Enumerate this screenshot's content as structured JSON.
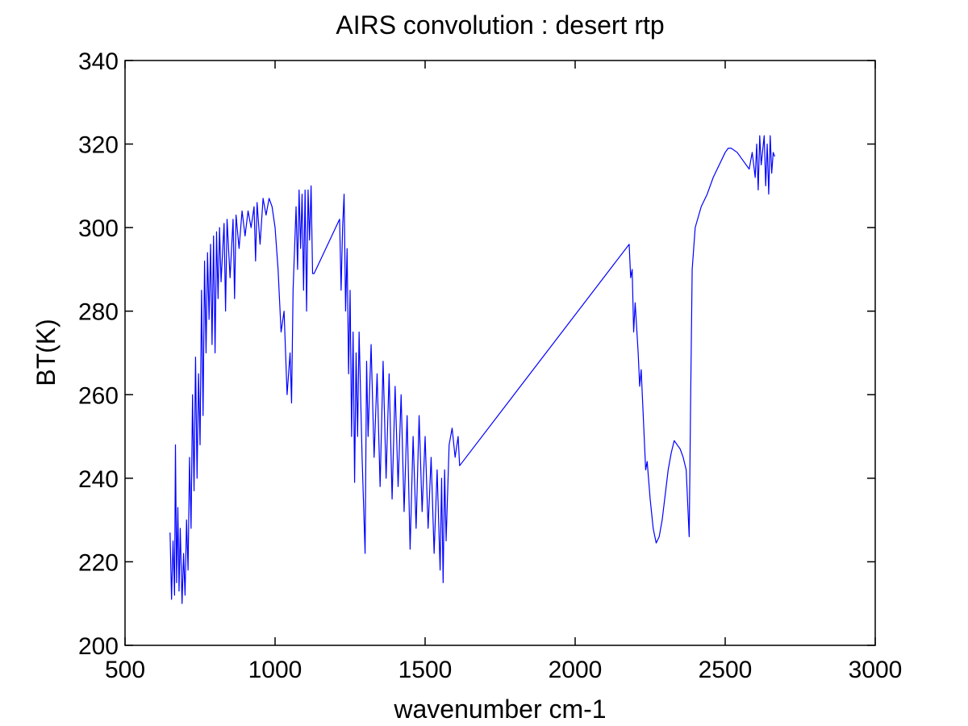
{
  "chart_data": {
    "type": "line",
    "title": "AIRS convolution : desert rtp",
    "xlabel": "wavenumber cm-1",
    "ylabel": "BT(K)",
    "xlim": [
      500,
      3000
    ],
    "xticks": [
      500,
      1000,
      1500,
      2000,
      2500,
      3000
    ],
    "ylim": [
      200,
      340
    ],
    "yticks": [
      200,
      220,
      240,
      260,
      280,
      300,
      320,
      340
    ],
    "grid": false,
    "x": [
      650,
      655,
      660,
      665,
      668,
      672,
      676,
      680,
      684,
      690,
      695,
      700,
      705,
      710,
      715,
      720,
      725,
      730,
      735,
      740,
      745,
      750,
      755,
      760,
      765,
      770,
      775,
      780,
      785,
      790,
      795,
      800,
      805,
      810,
      815,
      820,
      830,
      835,
      840,
      850,
      860,
      865,
      870,
      880,
      890,
      900,
      910,
      920,
      930,
      935,
      940,
      950,
      960,
      970,
      980,
      990,
      1000,
      1010,
      1020,
      1030,
      1040,
      1050,
      1055,
      1060,
      1070,
      1075,
      1080,
      1085,
      1090,
      1095,
      1100,
      1105,
      1110,
      1115,
      1120,
      1125,
      1130,
      1215,
      1220,
      1225,
      1230,
      1235,
      1240,
      1245,
      1250,
      1255,
      1260,
      1265,
      1270,
      1275,
      1280,
      1290,
      1300,
      1305,
      1310,
      1320,
      1330,
      1340,
      1350,
      1360,
      1370,
      1380,
      1390,
      1400,
      1410,
      1420,
      1430,
      1440,
      1450,
      1460,
      1470,
      1480,
      1490,
      1500,
      1510,
      1520,
      1530,
      1540,
      1550,
      1555,
      1560,
      1565,
      1570,
      1580,
      1590,
      1600,
      1610,
      1615,
      2180,
      2185,
      2190,
      2195,
      2200,
      2210,
      2215,
      2220,
      2230,
      2235,
      2240,
      2250,
      2260,
      2270,
      2280,
      2290,
      2300,
      2310,
      2320,
      2330,
      2340,
      2350,
      2360,
      2370,
      2380,
      2385,
      2390,
      2400,
      2420,
      2440,
      2460,
      2480,
      2500,
      2510,
      2520,
      2540,
      2560,
      2580,
      2590,
      2600,
      2605,
      2610,
      2615,
      2620,
      2630,
      2635,
      2640,
      2645,
      2650,
      2655,
      2660,
      2665
    ],
    "series": [
      {
        "name": "BT",
        "color": "#0000ff",
        "values": [
          227,
          211,
          225,
          212,
          248,
          215,
          233,
          213,
          228,
          210,
          222,
          212,
          230,
          218,
          245,
          228,
          260,
          237,
          269,
          240,
          265,
          248,
          285,
          255,
          292,
          270,
          294,
          278,
          296,
          272,
          298,
          270,
          299,
          283,
          300,
          287,
          301,
          280,
          302,
          288,
          302,
          283,
          303,
          295,
          304,
          298,
          304,
          300,
          305,
          292,
          306,
          296,
          307,
          303,
          307,
          305,
          300,
          290,
          275,
          280,
          260,
          270,
          258,
          285,
          305,
          290,
          309,
          295,
          308,
          285,
          309,
          280,
          309,
          297,
          310,
          289,
          289,
          302,
          285,
          300,
          308,
          280,
          295,
          265,
          285,
          250,
          275,
          239,
          270,
          250,
          275,
          245,
          222,
          268,
          250,
          272,
          245,
          265,
          238,
          268,
          240,
          265,
          235,
          262,
          238,
          260,
          232,
          255,
          223,
          250,
          228,
          255,
          232,
          250,
          228,
          245,
          222,
          242,
          218,
          240,
          215,
          242,
          225,
          248,
          252,
          245,
          250,
          243,
          296,
          288,
          290,
          275,
          282,
          270,
          262,
          266,
          250,
          242,
          244,
          235,
          228,
          224.5,
          226,
          230,
          236,
          242,
          246,
          249,
          248,
          247,
          245,
          242,
          226,
          260,
          290,
          300,
          305,
          308,
          312,
          315,
          318,
          319,
          319,
          318,
          316,
          314,
          318,
          312,
          320,
          309,
          322,
          315,
          322,
          310,
          320,
          308,
          322,
          313,
          318,
          317
        ]
      }
    ]
  }
}
